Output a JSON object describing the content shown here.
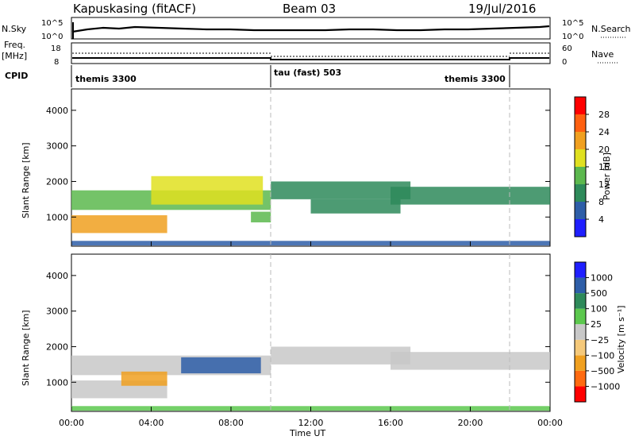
{
  "header": {
    "station": "Kapuskasing (fitACF)",
    "beam": "Beam 03",
    "date": "19/Jul/2016"
  },
  "left_labels": {
    "nsky": "N.Sky",
    "freq": "Freq.",
    "mhz": "[MHz]",
    "cpid": "CPID",
    "nsky_ticks": [
      "10^5",
      "10^0"
    ],
    "freq_ticks": [
      "18",
      "8"
    ]
  },
  "right_labels": {
    "nsearch": "N.Search",
    "nave": "Nave",
    "nsearch_ticks": [
      "10^5",
      "10^0"
    ],
    "nave_ticks": [
      "60",
      "0"
    ]
  },
  "cpid_segments": [
    {
      "label": "themis 3300",
      "start": 0,
      "end": 10.0
    },
    {
      "label": "tau (fast) 503",
      "start": 10.0,
      "end": 22.0
    },
    {
      "label": "themis 3300",
      "start": 22.0,
      "end": 24.0
    }
  ],
  "colors": {
    "power": [
      "#1f1fff",
      "#2e5ea8",
      "#2e8a5a",
      "#5cb84e",
      "#e0e020",
      "#f0a020",
      "#ff6010",
      "#ff0000"
    ],
    "velocity": [
      "#ff0000",
      "#ff6a10",
      "#f0a020",
      "#f5c97a",
      "#c8c8c8",
      "#5cc84e",
      "#2e8a5a",
      "#2e5ea8",
      "#1f1fff"
    ]
  },
  "chart_data": [
    {
      "type": "heatmap",
      "name": "power",
      "ylabel": "Slant Range [km]",
      "xlim": [
        0,
        24
      ],
      "ylim": [
        180,
        4600
      ],
      "yticks": [
        "1000",
        "2000",
        "3000",
        "4000"
      ],
      "colorbar": {
        "label": "Power [dB]",
        "ticks": [
          "4",
          "8",
          "12",
          "16",
          "20",
          "24",
          "28"
        ],
        "range": [
          0,
          32
        ]
      },
      "bands": [
        {
          "t0": 0.0,
          "t1": 10.0,
          "r0": 1200,
          "r1": 1750,
          "value": 13
        },
        {
          "t0": 0.0,
          "t1": 4.8,
          "r0": 550,
          "r1": 1050,
          "value": 21
        },
        {
          "t0": 4.0,
          "t1": 9.6,
          "r0": 1350,
          "r1": 2150,
          "value": 16
        },
        {
          "t0": 9.0,
          "t1": 10.0,
          "r0": 850,
          "r1": 1150,
          "value": 12
        },
        {
          "t0": 10.0,
          "t1": 17.0,
          "r0": 1500,
          "r1": 2000,
          "value": 11
        },
        {
          "t0": 12.0,
          "t1": 16.5,
          "r0": 1100,
          "r1": 1500,
          "value": 9
        },
        {
          "t0": 16.0,
          "t1": 24.0,
          "r0": 1350,
          "r1": 1850,
          "value": 10
        },
        {
          "t0": 0.0,
          "t1": 24.0,
          "r0": 200,
          "r1": 330,
          "value": 6
        }
      ]
    },
    {
      "type": "heatmap",
      "name": "velocity",
      "ylabel": "Slant Range [km]",
      "xlabel": "Time UT",
      "xlim": [
        0,
        24
      ],
      "ylim": [
        180,
        4600
      ],
      "yticks": [
        "1000",
        "2000",
        "3000",
        "4000"
      ],
      "xticks": [
        "00:00",
        "04:00",
        "08:00",
        "12:00",
        "16:00",
        "20:00",
        "00:00"
      ],
      "colorbar": {
        "label": "Velocity [m s⁻¹]",
        "ticks": [
          "1000",
          "500",
          "100",
          "25",
          "−25",
          "−100",
          "−500",
          "−1000"
        ]
      },
      "bands": [
        {
          "t0": 0.0,
          "t1": 10.0,
          "r0": 1200,
          "r1": 1750,
          "value": "25"
        },
        {
          "t0": 0.0,
          "t1": 4.8,
          "r0": 550,
          "r1": 1050,
          "value": "25"
        },
        {
          "t0": 5.5,
          "t1": 9.5,
          "r0": 1250,
          "r1": 1700,
          "value": "500"
        },
        {
          "t0": 2.5,
          "t1": 4.8,
          "r0": 900,
          "r1": 1300,
          "value": "-100"
        },
        {
          "t0": 10.0,
          "t1": 17.0,
          "r0": 1500,
          "r1": 2000,
          "value": "25"
        },
        {
          "t0": 16.0,
          "t1": 24.0,
          "r0": 1350,
          "r1": 1850,
          "value": "25"
        },
        {
          "t0": 0.0,
          "t1": 24.0,
          "r0": 200,
          "r1": 330,
          "value": "100"
        }
      ]
    }
  ]
}
